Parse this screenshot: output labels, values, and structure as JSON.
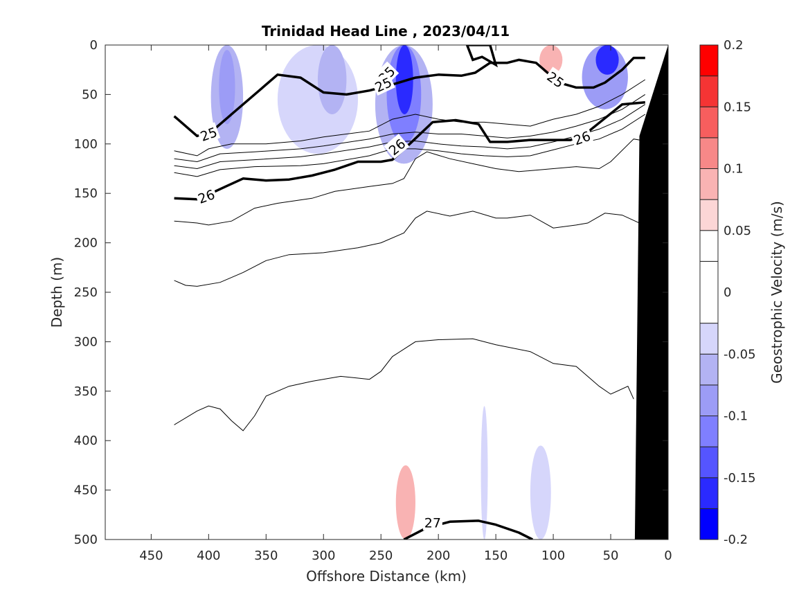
{
  "chart_data": {
    "type": "contour",
    "title": "Trinidad Head Line , 2023/04/11",
    "xlabel": "Offshore Distance (km)",
    "ylabel": "Depth (m)",
    "colorbar_label": "Geostrophic Velocity (m/s)",
    "xlim": [
      490,
      0
    ],
    "ylim": [
      0,
      500
    ],
    "x_ticks": [
      450,
      400,
      350,
      300,
      250,
      200,
      150,
      100,
      50,
      0
    ],
    "y_ticks": [
      0,
      50,
      100,
      150,
      200,
      250,
      300,
      350,
      400,
      450,
      500
    ],
    "colorbar": {
      "range": [
        -0.2,
        0.2
      ],
      "ticks": [
        0.2,
        0.15,
        0.1,
        0.05,
        0,
        -0.05,
        -0.1,
        -0.15,
        -0.2
      ],
      "levels": [
        -0.2,
        -0.175,
        -0.15,
        -0.125,
        -0.1,
        -0.075,
        -0.05,
        -0.025,
        0.025,
        0.05,
        0.075,
        0.1,
        0.125,
        0.15,
        0.175,
        0.2
      ],
      "colors": [
        "#0000ff",
        "#2a2aff",
        "#5555ff",
        "#7f7fff",
        "#9c9cf6",
        "#b3b3f3",
        "#d6d6fb",
        "#ffffff",
        "#ffffff",
        "#fcd6d6",
        "#f9b3b3",
        "#f78888",
        "#f75e5e",
        "#f53434",
        "#ff0000"
      ]
    },
    "velocity_patches": [
      {
        "x": [
          430,
          418
        ],
        "depth": [
          0,
          105
        ],
        "value": 0.04
      },
      {
        "x": [
          398,
          370
        ],
        "depth": [
          0,
          105
        ],
        "value": -0.06
      },
      {
        "x": [
          391,
          377
        ],
        "depth": [
          5,
          80
        ],
        "value": -0.09
      },
      {
        "x": [
          340,
          270
        ],
        "depth": [
          0,
          110
        ],
        "value": -0.03
      },
      {
        "x": [
          305,
          280
        ],
        "depth": [
          0,
          70
        ],
        "value": -0.05
      },
      {
        "x": [
          255,
          205
        ],
        "depth": [
          0,
          120
        ],
        "value": -0.06
      },
      {
        "x": [
          245,
          215
        ],
        "depth": [
          0,
          100
        ],
        "value": -0.1
      },
      {
        "x": [
          237,
          222
        ],
        "depth": [
          0,
          70
        ],
        "value": -0.16
      },
      {
        "x": [
          170,
          150
        ],
        "depth": [
          25,
          90
        ],
        "value": 0.05
      },
      {
        "x": [
          120,
          85
        ],
        "depth": [
          0,
          60
        ],
        "value": 0.05
      },
      {
        "x": [
          112,
          92
        ],
        "depth": [
          0,
          30
        ],
        "value": 0.08
      },
      {
        "x": [
          75,
          35
        ],
        "depth": [
          0,
          65
        ],
        "value": -0.08
      },
      {
        "x": [
          63,
          43
        ],
        "depth": [
          0,
          30
        ],
        "value": -0.15
      },
      {
        "x": [
          393,
          373
        ],
        "depth": [
          180,
          385
        ],
        "value": 0.04
      },
      {
        "x": [
          67,
          50
        ],
        "depth": [
          190,
          470
        ],
        "value": 0.04
      },
      {
        "x": [
          365,
          328
        ],
        "depth": [
          405,
          500
        ],
        "value": 0.04
      },
      {
        "x": [
          258,
          210
        ],
        "depth": [
          250,
          500
        ],
        "value": 0.04
      },
      {
        "x": [
          237,
          220
        ],
        "depth": [
          425,
          500
        ],
        "value": 0.08
      },
      {
        "x": [
          163,
          157
        ],
        "depth": [
          365,
          500
        ],
        "value": -0.04
      },
      {
        "x": [
          120,
          102
        ],
        "depth": [
          405,
          500
        ],
        "value": -0.04
      }
    ],
    "isopycnals_thin": [
      [
        [
          430,
          107
        ],
        [
          410,
          112
        ],
        [
          400,
          105
        ],
        [
          380,
          100
        ],
        [
          350,
          100
        ],
        [
          320,
          97
        ],
        [
          300,
          93
        ],
        [
          260,
          87
        ],
        [
          240,
          75
        ],
        [
          220,
          70
        ],
        [
          200,
          75
        ],
        [
          180,
          78
        ],
        [
          160,
          78
        ],
        [
          140,
          80
        ],
        [
          120,
          82
        ],
        [
          100,
          75
        ],
        [
          80,
          70
        ],
        [
          60,
          62
        ],
        [
          40,
          50
        ],
        [
          20,
          35
        ]
      ],
      [
        [
          430,
          115
        ],
        [
          410,
          118
        ],
        [
          390,
          110
        ],
        [
          360,
          108
        ],
        [
          320,
          105
        ],
        [
          300,
          102
        ],
        [
          260,
          95
        ],
        [
          240,
          90
        ],
        [
          220,
          88
        ],
        [
          200,
          90
        ],
        [
          180,
          90
        ],
        [
          160,
          92
        ],
        [
          140,
          94
        ],
        [
          120,
          92
        ],
        [
          100,
          88
        ],
        [
          80,
          82
        ],
        [
          60,
          75
        ],
        [
          40,
          65
        ],
        [
          20,
          50
        ]
      ],
      [
        [
          430,
          122
        ],
        [
          410,
          125
        ],
        [
          390,
          118
        ],
        [
          360,
          116
        ],
        [
          320,
          113
        ],
        [
          300,
          110
        ],
        [
          260,
          103
        ],
        [
          240,
          98
        ],
        [
          220,
          97
        ],
        [
          200,
          100
        ],
        [
          180,
          102
        ],
        [
          160,
          103
        ],
        [
          140,
          105
        ],
        [
          120,
          103
        ],
        [
          100,
          98
        ],
        [
          80,
          92
        ],
        [
          60,
          85
        ],
        [
          40,
          75
        ],
        [
          20,
          60
        ]
      ],
      [
        [
          430,
          129
        ],
        [
          410,
          133
        ],
        [
          390,
          126
        ],
        [
          360,
          123
        ],
        [
          320,
          122
        ],
        [
          300,
          120
        ],
        [
          260,
          112
        ],
        [
          240,
          105
        ],
        [
          220,
          105
        ],
        [
          200,
          107
        ],
        [
          180,
          110
        ],
        [
          160,
          112
        ],
        [
          140,
          113
        ],
        [
          120,
          112
        ],
        [
          100,
          106
        ],
        [
          80,
          100
        ],
        [
          60,
          95
        ],
        [
          40,
          85
        ],
        [
          20,
          70
        ]
      ],
      [
        [
          430,
          178
        ],
        [
          410,
          180
        ],
        [
          400,
          182
        ],
        [
          380,
          178
        ],
        [
          360,
          165
        ],
        [
          340,
          160
        ],
        [
          310,
          155
        ],
        [
          290,
          148
        ],
        [
          260,
          143
        ],
        [
          240,
          140
        ],
        [
          230,
          135
        ],
        [
          220,
          115
        ],
        [
          210,
          108
        ],
        [
          190,
          115
        ],
        [
          170,
          120
        ],
        [
          150,
          125
        ],
        [
          130,
          128
        ],
        [
          100,
          125
        ],
        [
          80,
          123
        ],
        [
          60,
          125
        ],
        [
          50,
          118
        ],
        [
          30,
          95
        ],
        [
          20,
          97
        ]
      ],
      [
        [
          430,
          238
        ],
        [
          420,
          243
        ],
        [
          410,
          244
        ],
        [
          390,
          240
        ],
        [
          370,
          230
        ],
        [
          350,
          218
        ],
        [
          330,
          212
        ],
        [
          300,
          210
        ],
        [
          270,
          205
        ],
        [
          250,
          200
        ],
        [
          230,
          190
        ],
        [
          220,
          175
        ],
        [
          210,
          168
        ],
        [
          190,
          173
        ],
        [
          170,
          168
        ],
        [
          150,
          175
        ],
        [
          140,
          175
        ],
        [
          120,
          172
        ],
        [
          100,
          185
        ],
        [
          80,
          182
        ],
        [
          70,
          180
        ],
        [
          55,
          170
        ],
        [
          40,
          172
        ],
        [
          25,
          180
        ],
        [
          20,
          187
        ]
      ],
      [
        [
          430,
          384
        ],
        [
          410,
          370
        ],
        [
          400,
          365
        ],
        [
          390,
          368
        ],
        [
          380,
          380
        ],
        [
          370,
          390
        ],
        [
          360,
          375
        ],
        [
          350,
          355
        ],
        [
          330,
          345
        ],
        [
          310,
          340
        ],
        [
          285,
          335
        ],
        [
          260,
          338
        ],
        [
          250,
          330
        ],
        [
          240,
          315
        ],
        [
          220,
          300
        ],
        [
          200,
          298
        ],
        [
          170,
          297
        ],
        [
          150,
          303
        ],
        [
          120,
          310
        ],
        [
          100,
          322
        ],
        [
          80,
          325
        ],
        [
          60,
          345
        ],
        [
          50,
          353
        ],
        [
          35,
          345
        ],
        [
          30,
          358
        ]
      ]
    ],
    "isopycnals_bold": [
      {
        "label": "25",
        "points": [
          [
            430,
            72
          ],
          [
            410,
            92
          ],
          [
            395,
            85
          ],
          [
            378,
            68
          ],
          [
            355,
            45
          ],
          [
            340,
            30
          ],
          [
            320,
            33
          ],
          [
            300,
            48
          ],
          [
            280,
            50
          ],
          [
            260,
            46
          ],
          [
            240,
            40
          ],
          [
            220,
            33
          ],
          [
            200,
            30
          ],
          [
            180,
            31
          ],
          [
            168,
            28
          ],
          [
            155,
            18
          ],
          [
            140,
            18
          ],
          [
            130,
            15
          ],
          [
            115,
            18
          ],
          [
            95,
            38
          ],
          [
            80,
            43
          ],
          [
            65,
            43
          ],
          [
            55,
            38
          ],
          [
            40,
            25
          ],
          [
            30,
            13
          ],
          [
            20,
            13
          ]
        ]
      },
      {
        "label": "26",
        "points": [
          [
            430,
            155
          ],
          [
            410,
            156
          ],
          [
            398,
            150
          ],
          [
            385,
            143
          ],
          [
            370,
            135
          ],
          [
            350,
            137
          ],
          [
            330,
            136
          ],
          [
            310,
            132
          ],
          [
            290,
            126
          ],
          [
            270,
            118
          ],
          [
            250,
            118
          ],
          [
            240,
            116
          ],
          [
            225,
            100
          ],
          [
            205,
            78
          ],
          [
            185,
            76
          ],
          [
            165,
            80
          ],
          [
            155,
            98
          ],
          [
            140,
            98
          ],
          [
            120,
            96
          ],
          [
            100,
            96
          ],
          [
            85,
            96
          ],
          [
            70,
            88
          ],
          [
            55,
            74
          ],
          [
            40,
            60
          ],
          [
            20,
            58
          ]
        ]
      },
      {
        "label": "27",
        "points": [
          [
            230,
            500
          ],
          [
            210,
            488
          ],
          [
            190,
            482
          ],
          [
            165,
            481
          ],
          [
            150,
            485
          ],
          [
            130,
            493
          ],
          [
            118,
            500
          ]
        ]
      }
    ],
    "contour_labels": [
      {
        "text": "25",
        "x": 400,
        "depth": 90,
        "angle": -20
      },
      {
        "text": "25",
        "x": 245,
        "depth": 30,
        "angle": -45
      },
      {
        "text": "25",
        "x": 248,
        "depth": 40,
        "angle": -25
      },
      {
        "text": "25",
        "x": 98,
        "depth": 35,
        "angle": 35
      },
      {
        "text": "26",
        "x": 402,
        "depth": 153,
        "angle": -20
      },
      {
        "text": "26",
        "x": 236,
        "depth": 103,
        "angle": -40
      },
      {
        "text": "26",
        "x": 75,
        "depth": 94,
        "angle": -20
      },
      {
        "text": "27",
        "x": 205,
        "depth": 483,
        "angle": 0
      }
    ],
    "closed_contour_25": [
      [
        175,
        0
      ],
      [
        170,
        15
      ],
      [
        162,
        12
      ],
      [
        150,
        20
      ],
      [
        155,
        0
      ]
    ],
    "topography": [
      [
        0,
        0
      ],
      [
        25,
        92
      ],
      [
        29,
        500
      ],
      [
        0,
        500
      ]
    ]
  }
}
